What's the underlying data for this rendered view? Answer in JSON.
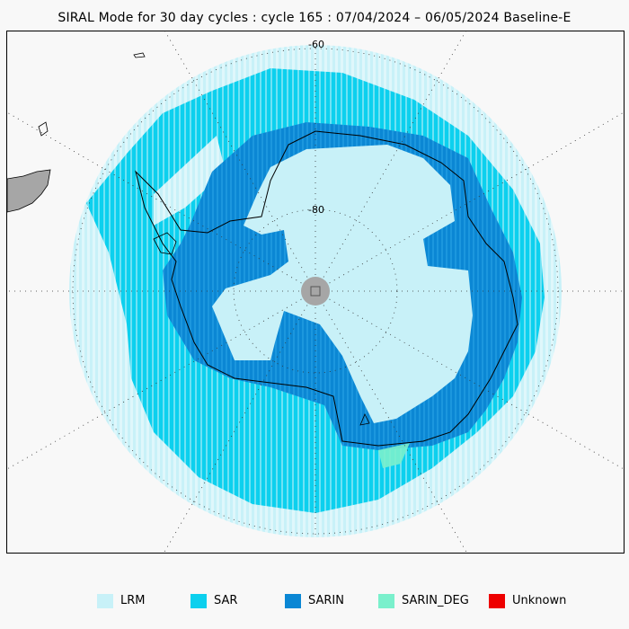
{
  "title": "SIRAL Mode for 30 day cycles : cycle 165 : 07/04/2024 – 06/05/2024 Baseline-E",
  "map": {
    "projection": "south-polar-stereographic",
    "latitude_labels": [
      "-60",
      "-80"
    ],
    "graticule": "dotted",
    "pole_marker": "grey-circle"
  },
  "legend": [
    {
      "label": "LRM",
      "color": "#c8f1f8"
    },
    {
      "label": "SAR",
      "color": "#0cd0ee"
    },
    {
      "label": "SARIN",
      "color": "#0b87d4"
    },
    {
      "label": "SARIN_DEG",
      "color": "#7af0cc"
    },
    {
      "label": "Unknown",
      "color": "#ee0000"
    }
  ],
  "colors": {
    "background": "#f8f8f8",
    "land_outline": "#000000",
    "land_fill_other": "#a6a6a6",
    "pole_fill": "#a6a6a6"
  }
}
